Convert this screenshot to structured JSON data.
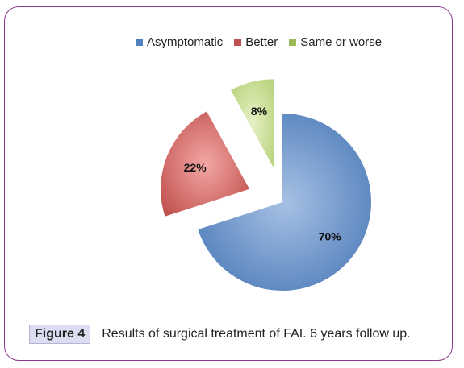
{
  "chart_data": {
    "type": "pie",
    "categories": [
      "Asymptomatic",
      "Better",
      "Same or worse"
    ],
    "values": [
      70,
      22,
      8
    ],
    "labels": [
      "70%",
      "22%",
      "8%"
    ],
    "colors": [
      "#4f81bd",
      "#c0504d",
      "#9bbb59"
    ],
    "exploded": [
      false,
      true,
      true
    ],
    "legend_position": "top"
  },
  "caption": {
    "label": "Figure 4",
    "text": "Results of surgical treatment of FAI. 6 years follow up."
  }
}
